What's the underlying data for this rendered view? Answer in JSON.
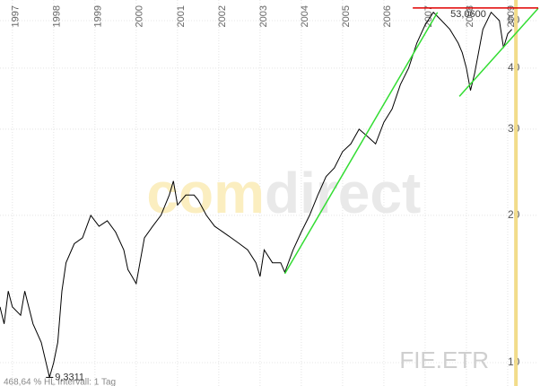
{
  "chart_data": {
    "type": "line",
    "symbol": "FIE.ETR",
    "footer": "468,64 % HL    Intervall: 1 Tag",
    "watermark": [
      "com",
      "direct"
    ],
    "log_y": true,
    "grid": true,
    "xlim": [
      1996.7,
      2009.74
    ],
    "ylim": [
      8.96,
      55.1
    ],
    "xticks": [
      1997,
      1998,
      1999,
      2000,
      2001,
      2002,
      2003,
      2004,
      2005,
      2006,
      2007,
      2008,
      2009
    ],
    "yticks": [
      10,
      20,
      30,
      40,
      50
    ],
    "series": [
      {
        "color": "#000000",
        "x": [
          1996.7,
          1996.8,
          1996.9,
          1997.0,
          1997.2,
          1997.3,
          1997.5,
          1997.7,
          1997.9,
          1998.0,
          1998.1,
          1998.2,
          1998.3,
          1998.5,
          1998.7,
          1998.9,
          1999.1,
          1999.3,
          1999.5,
          1999.7,
          1999.8,
          1999.9,
          2000.0,
          2000.2,
          2000.4,
          2000.6,
          2000.8,
          2000.9,
          2001.0,
          2001.2,
          2001.4,
          2001.5,
          2001.7,
          2001.9,
          2002.1,
          2002.3,
          2002.5,
          2002.7,
          2002.9,
          2003.0,
          2003.1,
          2003.3,
          2003.5,
          2003.6,
          2003.8,
          2004.0,
          2004.2,
          2004.4,
          2004.6,
          2004.8,
          2005.0,
          2005.2,
          2005.4,
          2005.6,
          2005.8,
          2006.0,
          2006.2,
          2006.4,
          2006.6,
          2006.8,
          2007.0,
          2007.2,
          2007.4,
          2007.6,
          2007.8,
          2007.9,
          2008.0,
          2008.1,
          2008.2,
          2008.4,
          2008.6,
          2008.8,
          2008.9,
          2009.0,
          2009.1
        ],
        "values": [
          13,
          12,
          14,
          13,
          12.5,
          14,
          12,
          11,
          9.3311,
          10,
          11,
          14,
          16,
          17.5,
          18,
          20,
          19,
          19.5,
          18.5,
          17,
          15.5,
          15,
          14.5,
          18,
          19,
          20,
          22,
          23.5,
          21,
          22,
          22,
          21.5,
          20,
          19,
          18.5,
          18,
          17.5,
          17,
          16,
          15,
          17,
          16,
          16,
          15.3,
          17,
          18.5,
          20,
          22,
          24,
          25,
          27,
          28,
          30,
          29,
          28,
          31,
          33,
          37,
          40,
          45,
          49,
          52,
          50,
          48,
          45,
          43,
          40,
          36,
          39,
          48,
          52,
          50,
          44,
          47,
          48
        ]
      }
    ],
    "trend_lines": [
      {
        "color": "#33dd33",
        "x": [
          2003.6,
          2007.3
        ],
        "values": [
          15.2,
          52
        ]
      },
      {
        "color": "#33dd33",
        "x": [
          2007.83,
          2009.74
        ],
        "values": [
          35,
          53
        ]
      }
    ],
    "hline": {
      "x": [
        2006.7,
        2009.74
      ],
      "value": 53.06,
      "label": "53,0600",
      "color": "#e00000"
    },
    "low_marker": {
      "x": 1997.9,
      "value": 9.3311,
      "label": "9,3311"
    },
    "current_date_x": 2009.2
  }
}
